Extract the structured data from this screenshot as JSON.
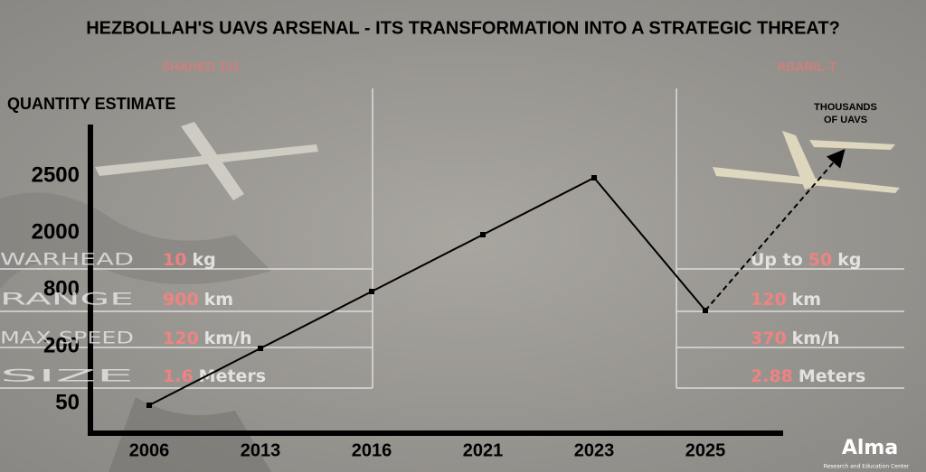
{
  "chart_data": {
    "type": "line",
    "title": "HEZBOLLAH'S UAVS ARSENAL - ITS TRANSFORMATION INTO A STRATEGIC THREAT?",
    "y_label": "QUANTITY ESTIMATE",
    "categories": [
      "2006",
      "2013",
      "2016",
      "2021",
      "2023",
      "2025"
    ],
    "values": [
      50,
      200,
      800,
      2000,
      2500,
      600
    ],
    "color": "#000000",
    "yticks": [
      50,
      200,
      800,
      2000,
      2500
    ],
    "annotation": "THOUSANDS OF UAVS"
  },
  "spec_labels": [
    "WARHEAD",
    "RANGE",
    "MAX SPEED",
    "SIZE"
  ],
  "drones": [
    {
      "name": "SHAHED 101",
      "specs": [
        {
          "value": "10",
          "unit": "kg"
        },
        {
          "value": "900",
          "unit": "km"
        },
        {
          "value": "120",
          "unit": "km/h"
        },
        {
          "value": "1.6",
          "unit": "Meters"
        }
      ]
    },
    {
      "name": "ABABIL-T",
      "specs": [
        {
          "prefix": "Up to",
          "value": "50",
          "unit": "kg"
        },
        {
          "value": "120",
          "unit": "km"
        },
        {
          "value": "370",
          "unit": "km/h"
        },
        {
          "value": "2.88",
          "unit": "Meters"
        }
      ]
    }
  ],
  "logo": {
    "name": "Alma",
    "subtitle": "Research and Education Center"
  }
}
